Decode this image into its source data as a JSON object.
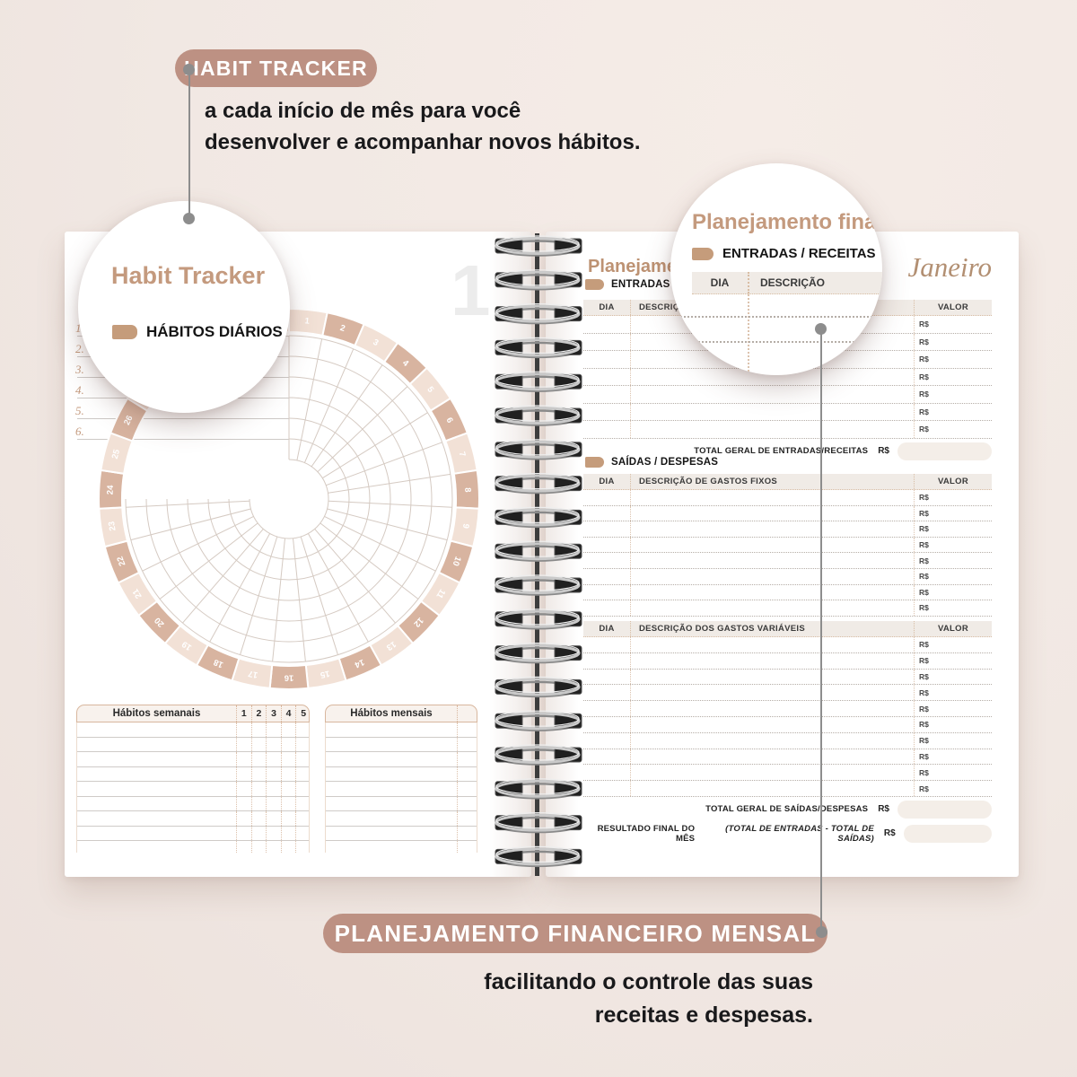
{
  "colors": {
    "accent": "#bd9183",
    "tan_text": "#c49a7e",
    "background": "#f1e8e3",
    "day_light": "#f2e1d6",
    "day_dark": "#d8b4a0"
  },
  "top_annotation": {
    "badge": "HABIT TRACKER",
    "line1": "a cada início de mês para você",
    "line2": "desenvolver e acompanhar novos hábitos."
  },
  "bottom_annotation": {
    "badge": "PLANEJAMENTO FINANCEIRO MENSAL",
    "line1": "facilitando o controle das suas",
    "line2": "receitas e despesas."
  },
  "left_magnifier": {
    "title": "Habit Tracker",
    "section": "HÁBITOS DIÁRIOS"
  },
  "right_magnifier": {
    "title": "Planejamento financeiro",
    "section": "ENTRADAS / RECEITAS",
    "col_dia": "DIA",
    "col_desc": "DESCRIÇÃO"
  },
  "left_page": {
    "page_number": "1",
    "habit_numbers": [
      "1.",
      "2.",
      "3.",
      "4.",
      "5.",
      "6."
    ],
    "wheel": {
      "days": 31,
      "tracks": 6
    },
    "weekly_table": {
      "title": "Hábitos semanais",
      "columns": [
        "1",
        "2",
        "3",
        "4",
        "5"
      ],
      "row_count": 8
    },
    "monthly_table": {
      "title": "Hábitos mensais",
      "row_count": 8
    }
  },
  "right_page": {
    "title": "Planejamento financeiro",
    "month": "Janeiro",
    "income_section": "ENTRADAS / RECEITAS",
    "expense_section": "SAÍDAS / DESPESAS",
    "currency": "R$",
    "tables": [
      {
        "dia": "DIA",
        "desc": "DESCRIÇÃO",
        "valor": "VALOR",
        "row_count": 7
      },
      {
        "dia": "DIA",
        "desc": "DESCRIÇÃO DE GASTOS FIXOS",
        "valor": "VALOR",
        "row_count": 8
      },
      {
        "dia": "DIA",
        "desc": "DESCRIÇÃO DOS GASTOS VARIÁVEIS",
        "valor": "VALOR",
        "row_count": 10
      }
    ],
    "total_income_label": "TOTAL GERAL DE ENTRADAS/RECEITAS",
    "total_expense_label": "TOTAL GERAL DE SAÍDAS/DESPESAS",
    "result_label": "RESULTADO FINAL DO MÊS",
    "result_note": "(TOTAL DE ENTRADAS - TOTAL DE SAÍDAS)"
  }
}
